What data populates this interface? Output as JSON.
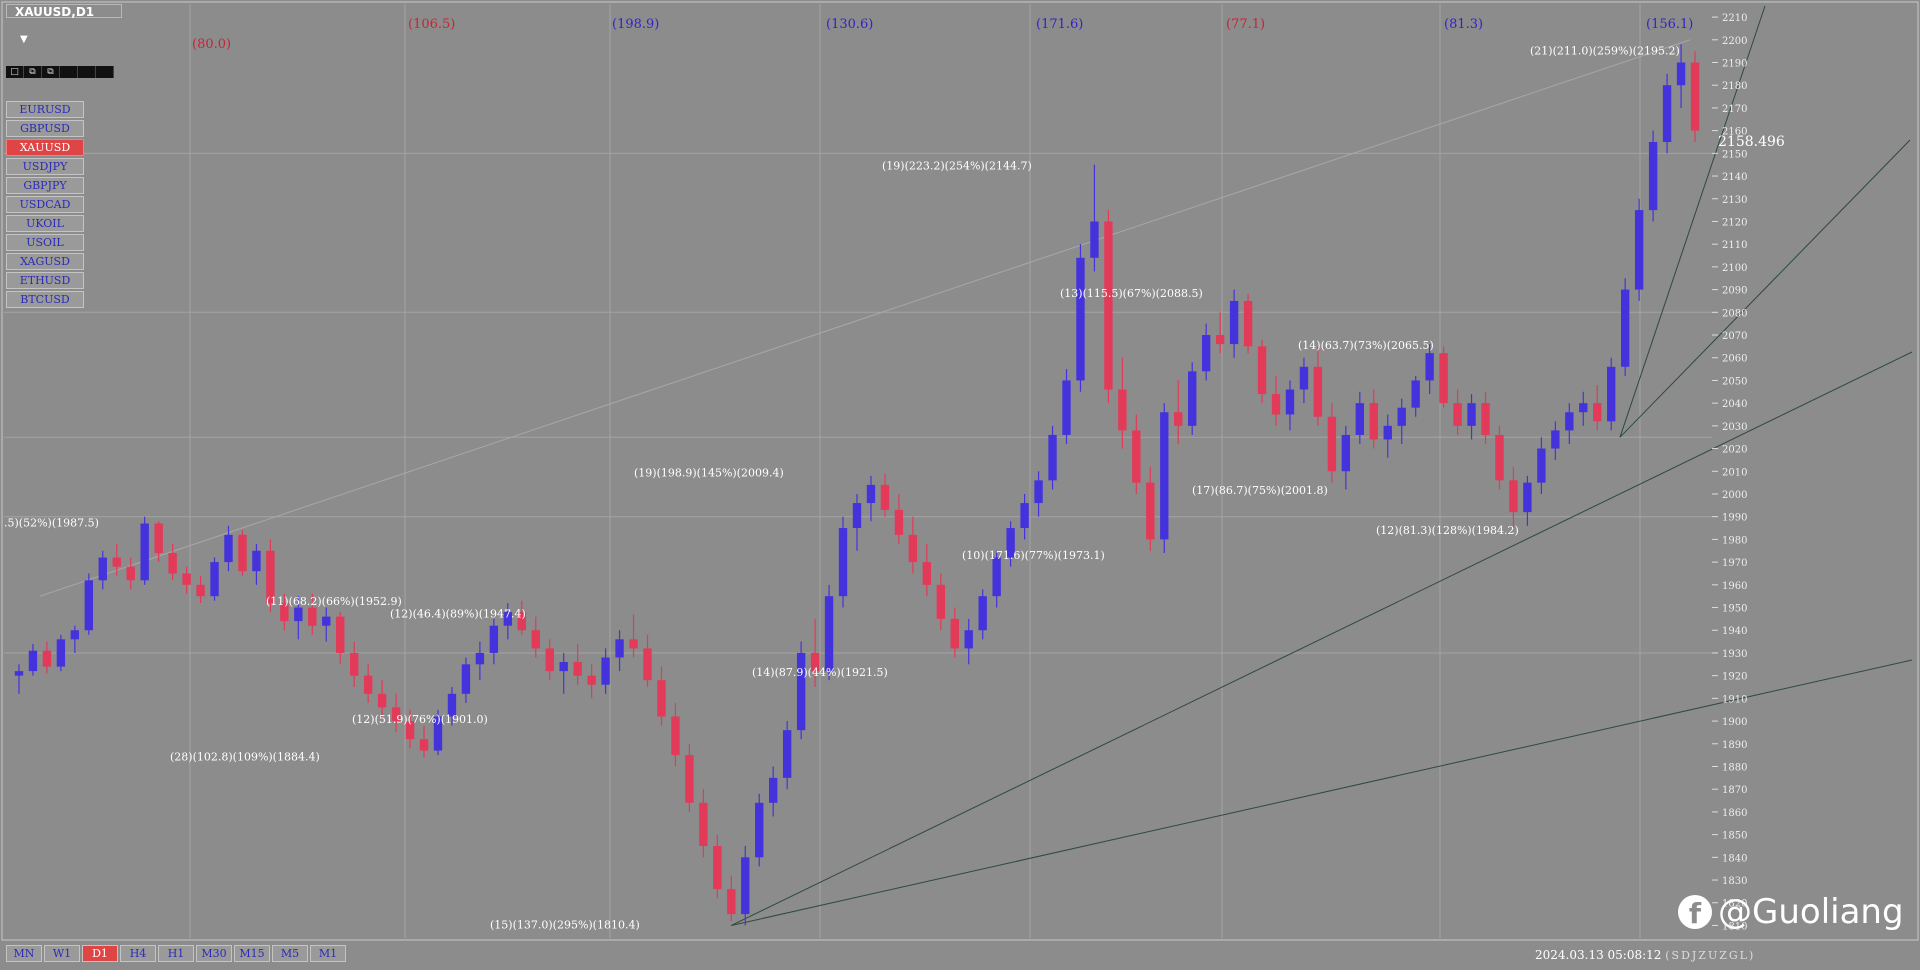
{
  "window": {
    "symbol_title": "XAUUSD,D1",
    "dropdown_label": "▼",
    "tiny_marker": "5]",
    "mini_toolbar_glyphs": [
      "□",
      "⧉",
      "⧉",
      "",
      "",
      ""
    ]
  },
  "symbols": [
    {
      "label": "EURUSD",
      "active": false
    },
    {
      "label": "GBPUSD",
      "active": false
    },
    {
      "label": "XAUUSD",
      "active": true
    },
    {
      "label": "USDJPY",
      "active": false
    },
    {
      "label": "GBPJPY",
      "active": false
    },
    {
      "label": "USDCAD",
      "active": false
    },
    {
      "label": "UKOIL",
      "active": false
    },
    {
      "label": "USOIL",
      "active": false
    },
    {
      "label": "XAGUSD",
      "active": false
    },
    {
      "label": "ETHUSD",
      "active": false
    },
    {
      "label": "BTCUSD",
      "active": false
    }
  ],
  "timeframes": [
    {
      "label": "MN",
      "active": false
    },
    {
      "label": "W1",
      "active": false
    },
    {
      "label": "D1",
      "active": true
    },
    {
      "label": "H4",
      "active": false
    },
    {
      "label": "H1",
      "active": false
    },
    {
      "label": "M30",
      "active": false
    },
    {
      "label": "M15",
      "active": false
    },
    {
      "label": "M5",
      "active": false
    },
    {
      "label": "M1",
      "active": false
    }
  ],
  "status": {
    "datetime": "2024.03.13  05:08:12",
    "code": "(SDJZUZGL)"
  },
  "watermark": {
    "icon": "f",
    "text": "@Guoliang"
  },
  "current_price": "2158.496",
  "chart_data": {
    "type": "candlestick",
    "instrument": "XAUUSD",
    "timeframe": "D1",
    "y_axis_ticks": [
      2210,
      2200,
      2190,
      2180,
      2170,
      2160,
      2150,
      2140,
      2130,
      2120,
      2110,
      2100,
      2090,
      2080,
      2070,
      2060,
      2050,
      2040,
      2030,
      2020,
      2010,
      2000,
      1990,
      1980,
      1970,
      1960,
      1950,
      1940,
      1930,
      1920,
      1910,
      1900,
      1890,
      1880,
      1870,
      1860,
      1850,
      1840,
      1830,
      1820,
      1810
    ],
    "ylim": [
      1808,
      2214
    ],
    "colors": {
      "up": "#4433dd",
      "down": "#e23a58",
      "grid": "#a4a4a4",
      "bg": "#8c8c8c"
    },
    "top_labels": [
      {
        "text": "(80.0)",
        "color": "red"
      },
      {
        "text": "(106.5)",
        "color": "red"
      },
      {
        "text": "(198.9)",
        "color": "blue"
      },
      {
        "text": "(130.6)",
        "color": "blue"
      },
      {
        "text": "(171.6)",
        "color": "blue"
      },
      {
        "text": "(77.1)",
        "color": "red"
      },
      {
        "text": "(81.3)",
        "color": "blue"
      },
      {
        "text": "(156.1)",
        "color": "blue"
      }
    ],
    "swing_annotations": [
      {
        "text": ".5)(52%)(1987.5)",
        "price": 1987.5
      },
      {
        "text": "(11)(68.2)(66%)(1952.9)",
        "price": 1952.9
      },
      {
        "text": "(12)(46.4)(89%)(1947.4)",
        "price": 1947.4
      },
      {
        "text": "(12)(51.9)(76%)(1901.0)",
        "price": 1901.0
      },
      {
        "text": "(28)(102.8)(109%)(1884.4)",
        "price": 1884.4
      },
      {
        "text": "(15)(137.0)(295%)(1810.4)",
        "price": 1810.4
      },
      {
        "text": "(19)(198.9)(145%)(2009.4)",
        "price": 2009.4
      },
      {
        "text": "(14)(87.9)(44%)(1921.5)",
        "price": 1921.5
      },
      {
        "text": "(19)(223.2)(254%)(2144.7)",
        "price": 2144.7
      },
      {
        "text": "(10)(171.6)(77%)(1973.1)",
        "price": 1973.1
      },
      {
        "text": "(13)(115.5)(67%)(2088.5)",
        "price": 2088.5
      },
      {
        "text": "(17)(86.7)(75%)(2001.8)",
        "price": 2001.8
      },
      {
        "text": "(14)(63.7)(73%)(2065.5)",
        "price": 2065.5
      },
      {
        "text": "(12)(81.3)(128%)(1984.2)",
        "price": 1984.2
      },
      {
        "text": "(21)(211.0)(259%)(2195.2)",
        "price": 2195.2
      }
    ],
    "candles": [
      [
        1920,
        1925,
        1912,
        1922
      ],
      [
        1922,
        1934,
        1920,
        1931
      ],
      [
        1931,
        1935,
        1921,
        1924
      ],
      [
        1924,
        1938,
        1922,
        1936
      ],
      [
        1936,
        1942,
        1930,
        1940
      ],
      [
        1940,
        1965,
        1938,
        1962
      ],
      [
        1962,
        1975,
        1958,
        1972
      ],
      [
        1972,
        1978,
        1964,
        1968
      ],
      [
        1968,
        1972,
        1958,
        1962
      ],
      [
        1962,
        1990,
        1960,
        1987
      ],
      [
        1987,
        1988,
        1970,
        1974
      ],
      [
        1974,
        1978,
        1962,
        1965
      ],
      [
        1965,
        1968,
        1956,
        1960
      ],
      [
        1960,
        1964,
        1952,
        1955
      ],
      [
        1955,
        1972,
        1953,
        1970
      ],
      [
        1970,
        1986,
        1966,
        1982
      ],
      [
        1982,
        1984,
        1964,
        1966
      ],
      [
        1966,
        1978,
        1960,
        1975
      ],
      [
        1975,
        1980,
        1948,
        1952
      ],
      [
        1952,
        1956,
        1940,
        1944
      ],
      [
        1944,
        1955,
        1936,
        1950
      ],
      [
        1950,
        1956,
        1938,
        1942
      ],
      [
        1942,
        1950,
        1935,
        1946
      ],
      [
        1946,
        1948,
        1925,
        1930
      ],
      [
        1930,
        1935,
        1915,
        1920
      ],
      [
        1920,
        1925,
        1908,
        1912
      ],
      [
        1912,
        1918,
        1902,
        1906
      ],
      [
        1906,
        1912,
        1895,
        1900
      ],
      [
        1900,
        1905,
        1888,
        1892
      ],
      [
        1892,
        1898,
        1884,
        1887
      ],
      [
        1887,
        1905,
        1885,
        1902
      ],
      [
        1902,
        1915,
        1898,
        1912
      ],
      [
        1912,
        1928,
        1908,
        1925
      ],
      [
        1925,
        1935,
        1918,
        1930
      ],
      [
        1930,
        1945,
        1925,
        1942
      ],
      [
        1942,
        1952,
        1936,
        1948
      ],
      [
        1948,
        1953,
        1938,
        1940
      ],
      [
        1940,
        1946,
        1928,
        1932
      ],
      [
        1932,
        1936,
        1918,
        1922
      ],
      [
        1922,
        1930,
        1912,
        1926
      ],
      [
        1926,
        1934,
        1916,
        1920
      ],
      [
        1920,
        1925,
        1910,
        1916
      ],
      [
        1916,
        1932,
        1912,
        1928
      ],
      [
        1928,
        1940,
        1922,
        1936
      ],
      [
        1936,
        1947,
        1928,
        1932
      ],
      [
        1932,
        1938,
        1915,
        1918
      ],
      [
        1918,
        1924,
        1898,
        1902
      ],
      [
        1902,
        1908,
        1880,
        1885
      ],
      [
        1885,
        1890,
        1860,
        1864
      ],
      [
        1864,
        1870,
        1840,
        1845
      ],
      [
        1845,
        1850,
        1822,
        1826
      ],
      [
        1826,
        1832,
        1812,
        1815
      ],
      [
        1815,
        1845,
        1810,
        1840
      ],
      [
        1840,
        1868,
        1836,
        1864
      ],
      [
        1864,
        1880,
        1858,
        1875
      ],
      [
        1875,
        1900,
        1870,
        1896
      ],
      [
        1896,
        1935,
        1892,
        1930
      ],
      [
        1930,
        1945,
        1915,
        1922
      ],
      [
        1922,
        1960,
        1918,
        1955
      ],
      [
        1955,
        1990,
        1950,
        1985
      ],
      [
        1985,
        2000,
        1975,
        1996
      ],
      [
        1996,
        2008,
        1988,
        2004
      ],
      [
        2004,
        2009,
        1990,
        1993
      ],
      [
        1993,
        2000,
        1978,
        1982
      ],
      [
        1982,
        1990,
        1965,
        1970
      ],
      [
        1970,
        1978,
        1955,
        1960
      ],
      [
        1960,
        1965,
        1940,
        1945
      ],
      [
        1945,
        1950,
        1928,
        1932
      ],
      [
        1932,
        1945,
        1925,
        1940
      ],
      [
        1940,
        1958,
        1936,
        1955
      ],
      [
        1955,
        1975,
        1950,
        1972
      ],
      [
        1972,
        1988,
        1968,
        1985
      ],
      [
        1985,
        2000,
        1980,
        1996
      ],
      [
        1996,
        2010,
        1990,
        2006
      ],
      [
        2006,
        2030,
        2002,
        2026
      ],
      [
        2026,
        2055,
        2022,
        2050
      ],
      [
        2050,
        2110,
        2045,
        2104
      ],
      [
        2104,
        2145,
        2098,
        2120
      ],
      [
        2120,
        2125,
        2040,
        2046
      ],
      [
        2046,
        2060,
        2020,
        2028
      ],
      [
        2028,
        2035,
        2000,
        2005
      ],
      [
        2005,
        2012,
        1975,
        1980
      ],
      [
        1980,
        2040,
        1974,
        2036
      ],
      [
        2036,
        2050,
        2022,
        2030
      ],
      [
        2030,
        2058,
        2026,
        2054
      ],
      [
        2054,
        2075,
        2050,
        2070
      ],
      [
        2070,
        2080,
        2062,
        2066
      ],
      [
        2066,
        2090,
        2060,
        2085
      ],
      [
        2085,
        2088,
        2062,
        2065
      ],
      [
        2065,
        2068,
        2040,
        2044
      ],
      [
        2044,
        2052,
        2030,
        2035
      ],
      [
        2035,
        2050,
        2028,
        2046
      ],
      [
        2046,
        2060,
        2040,
        2056
      ],
      [
        2056,
        2065,
        2030,
        2034
      ],
      [
        2034,
        2040,
        2005,
        2010
      ],
      [
        2010,
        2030,
        2002,
        2026
      ],
      [
        2026,
        2045,
        2022,
        2040
      ],
      [
        2040,
        2046,
        2020,
        2024
      ],
      [
        2024,
        2035,
        2016,
        2030
      ],
      [
        2030,
        2042,
        2022,
        2038
      ],
      [
        2038,
        2052,
        2034,
        2050
      ],
      [
        2050,
        2066,
        2044,
        2062
      ],
      [
        2062,
        2065,
        2038,
        2040
      ],
      [
        2040,
        2046,
        2026,
        2030
      ],
      [
        2030,
        2044,
        2024,
        2040
      ],
      [
        2040,
        2045,
        2022,
        2026
      ],
      [
        2026,
        2030,
        2002,
        2006
      ],
      [
        2006,
        2012,
        1985,
        1992
      ],
      [
        1992,
        2008,
        1986,
        2005
      ],
      [
        2005,
        2025,
        2000,
        2020
      ],
      [
        2020,
        2032,
        2015,
        2028
      ],
      [
        2028,
        2040,
        2022,
        2036
      ],
      [
        2036,
        2045,
        2030,
        2040
      ],
      [
        2040,
        2048,
        2028,
        2032
      ],
      [
        2032,
        2060,
        2028,
        2056
      ],
      [
        2056,
        2095,
        2052,
        2090
      ],
      [
        2090,
        2130,
        2085,
        2125
      ],
      [
        2125,
        2160,
        2120,
        2155
      ],
      [
        2155,
        2185,
        2150,
        2180
      ],
      [
        2180,
        2198,
        2170,
        2190
      ],
      [
        2190,
        2195,
        2155,
        2160
      ]
    ]
  }
}
